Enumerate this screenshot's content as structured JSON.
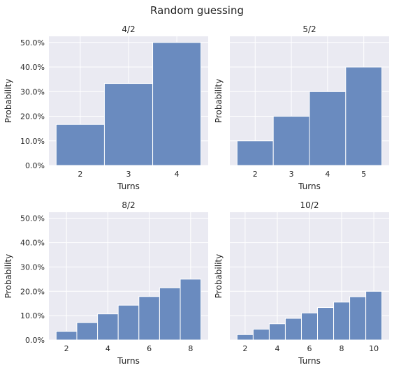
{
  "figure_title": "Random guessing",
  "chart_data": [
    {
      "type": "bar",
      "title": "4/2",
      "xlabel": "Turns",
      "ylabel": "Probability",
      "categories": [
        2,
        3,
        4
      ],
      "values": [
        0.1667,
        0.3333,
        0.5
      ],
      "xlim": [
        1.5,
        4.5
      ],
      "xticks": [
        2,
        3,
        4
      ],
      "ylim": [
        0,
        0.5
      ],
      "yticks": [
        "0.0%",
        "10.0%",
        "20.0%",
        "30.0%",
        "40.0%",
        "50.0%"
      ],
      "color": "#6a8bbf",
      "grid": true
    },
    {
      "type": "bar",
      "title": "5/2",
      "xlabel": "Turns",
      "ylabel": "Probability",
      "categories": [
        2,
        3,
        4,
        5
      ],
      "values": [
        0.1,
        0.2,
        0.3,
        0.4
      ],
      "xlim": [
        1.5,
        5.5
      ],
      "xticks": [
        2,
        3,
        4,
        5
      ],
      "ylim": [
        0,
        0.5
      ],
      "yticks": [],
      "color": "#6a8bbf",
      "grid": true
    },
    {
      "type": "bar",
      "title": "8/2",
      "xlabel": "Turns",
      "ylabel": "Probability",
      "categories": [
        2,
        3,
        4,
        5,
        6,
        7,
        8
      ],
      "values": [
        0.0357,
        0.0714,
        0.1071,
        0.1429,
        0.1786,
        0.2143,
        0.25
      ],
      "xlim": [
        1.5,
        8.5
      ],
      "xticks": [
        2,
        4,
        6,
        8
      ],
      "ylim": [
        0,
        0.5
      ],
      "yticks": [
        "0.0%",
        "10.0%",
        "20.0%",
        "30.0%",
        "40.0%",
        "50.0%"
      ],
      "color": "#6a8bbf",
      "grid": true
    },
    {
      "type": "bar",
      "title": "10/2",
      "xlabel": "Turns",
      "ylabel": "Probability",
      "categories": [
        2,
        3,
        4,
        5,
        6,
        7,
        8,
        9,
        10
      ],
      "values": [
        0.0222,
        0.0444,
        0.0667,
        0.0889,
        0.1111,
        0.1333,
        0.1556,
        0.1778,
        0.2
      ],
      "xlim": [
        1.5,
        10.5
      ],
      "xticks": [
        2,
        4,
        6,
        8,
        10
      ],
      "ylim": [
        0,
        0.5
      ],
      "yticks": [],
      "color": "#6a8bbf",
      "grid": true
    }
  ]
}
